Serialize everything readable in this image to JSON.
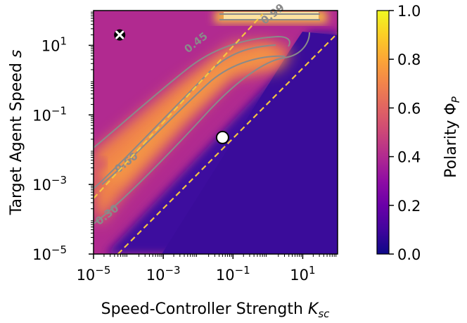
{
  "chart_data": {
    "type": "heatmap",
    "title": "",
    "xlabel_main": "Speed-Controller Strength ",
    "xlabel_sym": "K",
    "xlabel_sub": "sc",
    "ylabel_main": "Target Agent Speed ",
    "ylabel_sym": "s",
    "x_scale": "log",
    "y_scale": "log",
    "x_range_log10": [
      -5,
      2
    ],
    "y_range_log10": [
      -5,
      2
    ],
    "x_ticks": [
      {
        "exp": -5,
        "base": "10",
        "power": "−5"
      },
      {
        "exp": -3,
        "base": "10",
        "power": "−3"
      },
      {
        "exp": -1,
        "base": "10",
        "power": "−1"
      },
      {
        "exp": 1,
        "base": "10",
        "power": "1"
      }
    ],
    "y_ticks": [
      {
        "exp": -5,
        "base": "10",
        "power": "−5"
      },
      {
        "exp": -3,
        "base": "10",
        "power": "−3"
      },
      {
        "exp": -1,
        "base": "10",
        "power": "−1"
      },
      {
        "exp": 1,
        "base": "10",
        "power": "1"
      }
    ],
    "colorbar": {
      "label_main": "Polarity ",
      "label_sym": "Φ",
      "label_sub": "P",
      "range": [
        0.0,
        1.0
      ],
      "ticks": [
        "0.0",
        "0.2",
        "0.4",
        "0.6",
        "0.8",
        "1.0"
      ],
      "colormap": "plasma"
    },
    "contours": [
      {
        "level": "0.30",
        "label_at_log10": [
          -4.55,
          -3.95
        ]
      },
      {
        "level": "0.45",
        "label_at_log10": [
          -2.0,
          1.0
        ]
      },
      {
        "level": "0.60",
        "label_at_log10": [
          -4.0,
          -2.45
        ]
      },
      {
        "level": "0.99",
        "label_at_log10": [
          0.2,
          1.82
        ]
      }
    ],
    "dashed_lines": [
      {
        "name": "upper",
        "points_log10": [
          [
            -5,
            -3.4
          ],
          [
            -0.15,
            1.9
          ]
        ]
      },
      {
        "name": "lower",
        "points_log10": [
          [
            -4.3,
            -5
          ],
          [
            2,
            1.35
          ]
        ]
      }
    ],
    "markers": [
      {
        "name": "cross-marker",
        "kind": "x-circle",
        "x_log10": -4.25,
        "y_log10": 1.3
      },
      {
        "name": "open-circle-marker",
        "kind": "circle",
        "x_log10": -1.3,
        "y_log10": -1.65
      }
    ],
    "regions_description": "high polarity band along the diagonal between the dashed lines; low polarity bottom-right"
  },
  "colors": {
    "dashed_line": "#f5c542",
    "contour": "#8a8a8a",
    "background_high": "#b12a90",
    "background_low": "#3e0d9e",
    "band": "#f0834a"
  }
}
